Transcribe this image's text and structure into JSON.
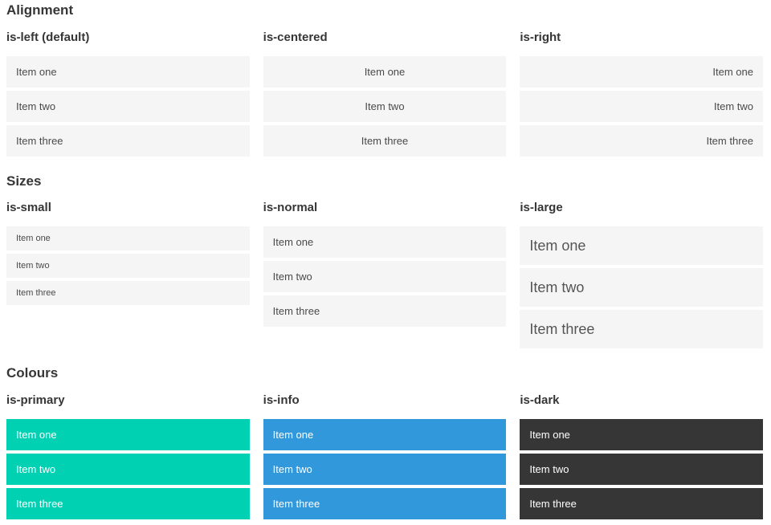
{
  "colors": {
    "page_background": "#ffffff",
    "item_background": "#f5f5f5",
    "item_text": "#4a4a4a",
    "heading_text": "#363636",
    "primary": "#00d1b2",
    "info": "#3298dc",
    "dark": "#363636",
    "colored_item_text": "#ffffff"
  },
  "sections": [
    {
      "title": "Alignment",
      "variants": [
        {
          "label": "is-left (default)",
          "items": [
            "Item one",
            "Item two",
            "Item three"
          ]
        },
        {
          "label": "is-centered",
          "items": [
            "Item one",
            "Item two",
            "Item three"
          ]
        },
        {
          "label": "is-right",
          "items": [
            "Item one",
            "Item two",
            "Item three"
          ]
        }
      ]
    },
    {
      "title": "Sizes",
      "variants": [
        {
          "label": "is-small",
          "items": [
            "Item one",
            "Item two",
            "Item three"
          ]
        },
        {
          "label": "is-normal",
          "items": [
            "Item one",
            "Item two",
            "Item three"
          ]
        },
        {
          "label": "is-large",
          "items": [
            "Item one",
            "Item two",
            "Item three"
          ]
        }
      ]
    },
    {
      "title": "Colours",
      "variants": [
        {
          "label": "is-primary",
          "items": [
            "Item one",
            "Item two",
            "Item three"
          ]
        },
        {
          "label": "is-info",
          "items": [
            "Item one",
            "Item two",
            "Item three"
          ]
        },
        {
          "label": "is-dark",
          "items": [
            "Item one",
            "Item two",
            "Item three"
          ]
        }
      ]
    }
  ]
}
